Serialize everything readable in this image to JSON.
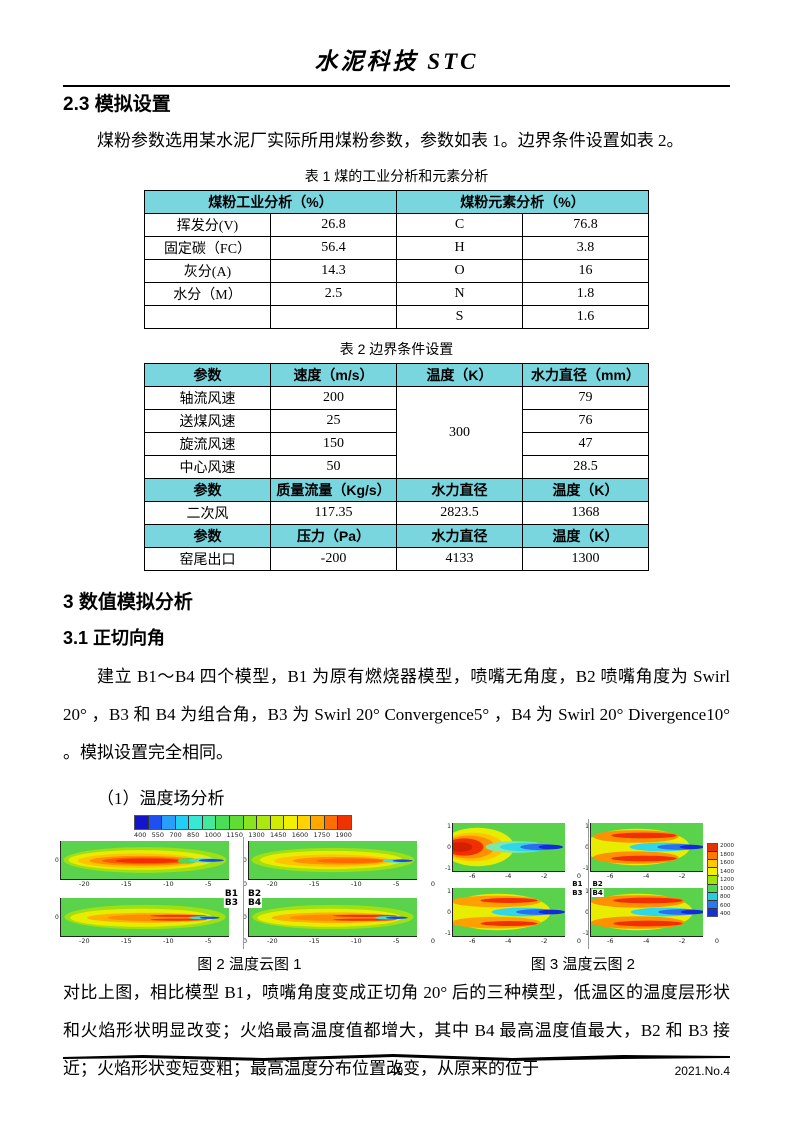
{
  "page": {
    "journal_title": "水泥科技 STC",
    "page_number": "49",
    "issue": "2021.No.4"
  },
  "section23": {
    "heading": "2.3 模拟设置",
    "paragraph": "煤粉参数选用某水泥厂实际所用煤粉参数，参数如表 1。边界条件设置如表 2。"
  },
  "table1": {
    "caption": "表 1 煤的工业分析和元素分析",
    "headers": [
      "煤粉工业分析（%）",
      "煤粉元素分析（%）"
    ],
    "rows": [
      [
        "挥发分(V)",
        "26.8",
        "C",
        "76.8"
      ],
      [
        "固定碳（FC）",
        "56.4",
        "H",
        "3.8"
      ],
      [
        "灰分(A)",
        "14.3",
        "O",
        "16"
      ],
      [
        "水分（M）",
        "2.5",
        "N",
        "1.8"
      ],
      [
        "",
        "",
        "S",
        "1.6"
      ]
    ]
  },
  "table2": {
    "caption": "表 2 边界条件设置",
    "header1": [
      "参数",
      "速度（m/s）",
      "温度（K）",
      "水力直径（mm）"
    ],
    "rows1": [
      [
        "轴流风速",
        "200",
        "79"
      ],
      [
        "送煤风速",
        "25",
        "76"
      ],
      [
        "旋流风速",
        "150",
        "47"
      ],
      [
        "中心风速",
        "50",
        "28.5"
      ]
    ],
    "merged_temperature": "300",
    "header2": [
      "参数",
      "质量流量（Kg/s）",
      "水力直径",
      "温度（K）"
    ],
    "rows2": [
      [
        "二次风",
        "117.35",
        "2823.5",
        "1368"
      ]
    ],
    "header3": [
      "参数",
      "压力（Pa）",
      "水力直径",
      "温度（K）"
    ],
    "rows3": [
      [
        "窑尾出口",
        "-200",
        "4133",
        "1300"
      ]
    ]
  },
  "section3": {
    "heading": "3  数值模拟分析"
  },
  "section31": {
    "heading": "3.1 正切向角",
    "paragraph": "建立 B1～B4 四个模型，B1 为原有燃烧器模型，喷嘴无角度，B2 喷嘴角度为 Swirl 20° ，B3 和 B4 为组合角，B3 为 Swirl 20° Convergence5° ，B4 为 Swirl 20° Divergence10° 。模拟设置完全相同。",
    "sub_item": "（1）温度场分析"
  },
  "figure2": {
    "caption": "图 2  温度云图 1",
    "type": "contour",
    "colorbar_ticks": [
      "400",
      "550",
      "700",
      "850",
      "1000",
      "1150",
      "1300",
      "1450",
      "1600",
      "1750",
      "1900"
    ],
    "panel_labels_top": "B1 B2",
    "panel_labels_bottom": "B3 B4",
    "panel_labels": [
      "B1",
      "B2",
      "B3",
      "B4"
    ],
    "x_ticks": [
      "-20",
      "-15",
      "-10",
      "-5",
      "0"
    ],
    "y_ticks": [
      "0"
    ]
  },
  "figure3": {
    "caption": "图 3  温度云图 2",
    "type": "contour",
    "colorbar_ticks": [
      "2000",
      "1800",
      "1600",
      "1400",
      "1200",
      "1000",
      "800",
      "600",
      "400"
    ],
    "panel_labels": [
      "B1",
      "B2",
      "B3",
      "B4"
    ],
    "x_ticks": [
      "-6",
      "-4",
      "-2",
      "0"
    ],
    "y_ticks": [
      "1",
      "0",
      "-1"
    ]
  },
  "closing_paragraph": "对比上图，相比模型 B1，喷嘴角度变成正切角 20° 后的三种模型，低温区的温度层形状和火焰形状明显改变；火焰最高温度值都增大，其中 B4 最高温度值最大，B2 和 B3 接近；火焰形状变短变粗；最高温度分布位置改变，从原来的位于",
  "colors": {
    "table_header_bg": "#79D5DE",
    "contour_background_green": "#5BD24B",
    "flame_red": "#F03000",
    "cold_blue": "#1D43F0"
  }
}
